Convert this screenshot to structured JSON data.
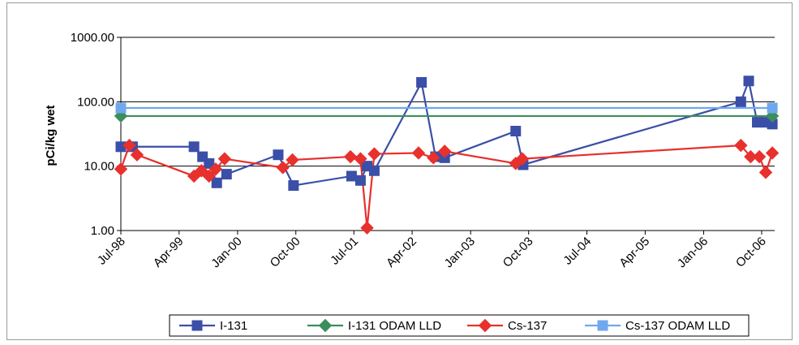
{
  "chart_data": {
    "type": "line",
    "ylabel": "pCi/kg wet",
    "xlabel": "",
    "y_scale": "log",
    "ylim": [
      1,
      1000
    ],
    "y_ticks": [
      1,
      10,
      100,
      1000
    ],
    "y_tick_labels": [
      "1.00",
      "10.00",
      "100.00",
      "1000.00"
    ],
    "xlim": [
      "1998-07-01",
      "2006-12-01"
    ],
    "x_ticks": [
      "1998-07-01",
      "1999-04-01",
      "2000-01-01",
      "2000-10-01",
      "2001-07-01",
      "2002-04-01",
      "2003-01-01",
      "2003-10-01",
      "2004-07-01",
      "2005-04-01",
      "2006-01-01",
      "2006-10-01"
    ],
    "x_tick_labels": [
      "Jul-98",
      "Apr-99",
      "Jan-00",
      "Oct-00",
      "Jul-01",
      "Apr-02",
      "Jan-03",
      "Oct-03",
      "Jul-04",
      "Apr-05",
      "Jan-06",
      "Oct-06"
    ],
    "grid": "horizontal major gridlines",
    "legend_position": "bottom",
    "series": [
      {
        "name": "I-131",
        "color": "#3b4fa8",
        "marker": "square",
        "points": [
          [
            "1998-07-01",
            20
          ],
          [
            "1998-08-25",
            20
          ],
          [
            "1999-06-10",
            20
          ],
          [
            "1999-07-20",
            14
          ],
          [
            "1999-08-20",
            11
          ],
          [
            "1999-09-25",
            5.5
          ],
          [
            "1999-11-10",
            7.5
          ],
          [
            "2000-07-10",
            15
          ],
          [
            "2000-09-20",
            5
          ],
          [
            "2001-06-20",
            7
          ],
          [
            "2001-08-01",
            6
          ],
          [
            "2001-09-01",
            10
          ],
          [
            "2001-10-05",
            8.5
          ],
          [
            "2002-05-15",
            200
          ],
          [
            "2002-07-20",
            14
          ],
          [
            "2002-09-01",
            13.5
          ],
          [
            "2003-08-01",
            35
          ],
          [
            "2003-09-05",
            10.5
          ],
          [
            "2006-06-25",
            100
          ],
          [
            "2006-08-01",
            210
          ],
          [
            "2006-09-10",
            48
          ],
          [
            "2006-10-20",
            48
          ],
          [
            "2006-11-20",
            45
          ]
        ]
      },
      {
        "name": "I-131 ODAM LLD",
        "color": "#3c8e5c",
        "marker": "diamond",
        "points": [
          [
            "1998-07-01",
            60
          ],
          [
            "2006-11-20",
            60
          ]
        ]
      },
      {
        "name": "Cs-137",
        "color": "#e8302c",
        "marker": "diamond",
        "points": [
          [
            "1998-07-01",
            9
          ],
          [
            "1998-08-10",
            21
          ],
          [
            "1998-09-15",
            15
          ],
          [
            "1999-06-10",
            7
          ],
          [
            "1999-07-15",
            8.5
          ],
          [
            "1999-08-20",
            7
          ],
          [
            "1999-09-20",
            9
          ],
          [
            "1999-11-01",
            13
          ],
          [
            "2000-08-01",
            9.5
          ],
          [
            "2000-09-15",
            12.5
          ],
          [
            "2001-06-15",
            14
          ],
          [
            "2001-08-01",
            13
          ],
          [
            "2001-09-01",
            1.1
          ],
          [
            "2001-10-05",
            15.5
          ],
          [
            "2002-05-01",
            16
          ],
          [
            "2002-07-10",
            13.5
          ],
          [
            "2002-09-01",
            17
          ],
          [
            "2003-08-01",
            11
          ],
          [
            "2003-09-01",
            13
          ],
          [
            "2006-06-25",
            21
          ],
          [
            "2006-08-10",
            14
          ],
          [
            "2006-09-20",
            14
          ],
          [
            "2006-10-20",
            8
          ],
          [
            "2006-11-20",
            16
          ]
        ]
      },
      {
        "name": "Cs-137 ODAM LLD",
        "color": "#6fa8ee",
        "marker": "square",
        "points": [
          [
            "1998-07-01",
            80
          ],
          [
            "2006-11-20",
            80
          ]
        ]
      }
    ]
  }
}
